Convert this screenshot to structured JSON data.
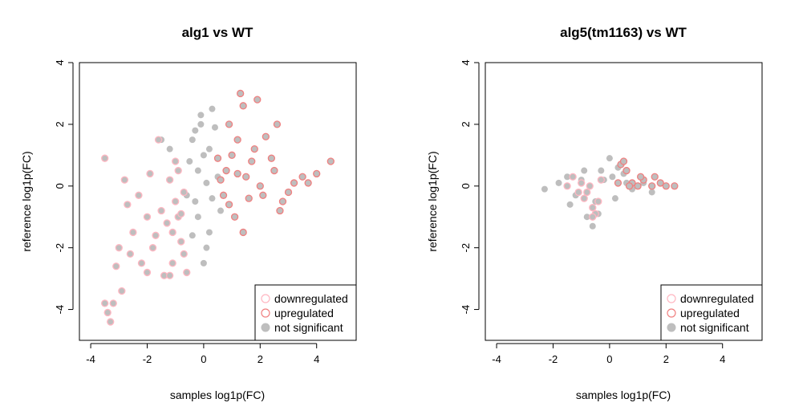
{
  "chart_data": [
    {
      "type": "scatter",
      "title": "alg1 vs WT",
      "xlabel": "samples log1p(FC)",
      "ylabel": "reference log1p(FC)",
      "xlim": [
        -4.4,
        5.4
      ],
      "ylim": [
        -5,
        4
      ],
      "xticks": [
        "-4",
        "-2",
        "0",
        "2",
        "4"
      ],
      "yticks": [
        "-4",
        "-2",
        "0",
        "2",
        "4"
      ],
      "legend_position": "bottom-right",
      "legend": [
        {
          "label": "downregulated",
          "style": "open",
          "color": "#FFB6C1"
        },
        {
          "label": "upregulated",
          "style": "open",
          "color": "#F08080"
        },
        {
          "label": "not significant",
          "style": "filled",
          "color": "#BEBEBE"
        }
      ],
      "series": [
        {
          "name": "not significant",
          "color": "#BEBEBE",
          "points": [
            [
              -0.2,
              0.5
            ],
            [
              0.0,
              1.0
            ],
            [
              -0.3,
              -0.5
            ],
            [
              0.2,
              -1.5
            ],
            [
              -0.1,
              2.0
            ],
            [
              0.3,
              2.5
            ],
            [
              -0.4,
              1.5
            ],
            [
              0.1,
              -2.0
            ],
            [
              -0.5,
              0.8
            ],
            [
              0.4,
              1.9
            ],
            [
              -0.2,
              -1.0
            ],
            [
              0.5,
              0.3
            ],
            [
              -0.6,
              -0.3
            ],
            [
              0.0,
              -2.5
            ],
            [
              0.2,
              1.2
            ],
            [
              -1.5,
              1.5
            ],
            [
              -1.2,
              1.2
            ],
            [
              -0.3,
              1.8
            ],
            [
              0.6,
              -0.8
            ],
            [
              0.1,
              0.1
            ],
            [
              -0.4,
              -1.6
            ],
            [
              0.3,
              -0.4
            ],
            [
              -0.1,
              2.3
            ]
          ]
        },
        {
          "name": "downregulated",
          "color": "#FFB6C1",
          "points": [
            [
              -1.0,
              -0.5
            ],
            [
              -0.9,
              -1.0
            ],
            [
              -1.2,
              0.2
            ],
            [
              -0.8,
              -1.8
            ],
            [
              -1.1,
              -2.5
            ],
            [
              -0.7,
              -0.2
            ],
            [
              -1.3,
              -1.2
            ],
            [
              -1.0,
              0.8
            ],
            [
              -0.6,
              -2.8
            ],
            [
              -1.5,
              -0.8
            ],
            [
              -2.0,
              -1.0
            ],
            [
              -1.8,
              -2.0
            ],
            [
              -2.5,
              -1.5
            ],
            [
              -2.2,
              -2.5
            ],
            [
              -2.8,
              0.2
            ],
            [
              -3.5,
              0.9
            ],
            [
              -3.0,
              -2.0
            ],
            [
              -2.9,
              -3.4
            ],
            [
              -3.2,
              -3.8
            ],
            [
              -3.4,
              -4.1
            ],
            [
              -3.3,
              -4.4
            ],
            [
              -3.5,
              -3.8
            ],
            [
              -2.6,
              -2.2
            ],
            [
              -1.6,
              1.5
            ],
            [
              -1.9,
              0.4
            ],
            [
              -2.3,
              -0.3
            ],
            [
              -1.4,
              -2.9
            ],
            [
              -0.9,
              0.5
            ],
            [
              -1.1,
              -1.5
            ],
            [
              -0.8,
              -0.9
            ],
            [
              -2.7,
              -0.6
            ],
            [
              -1.7,
              -1.6
            ],
            [
              -1.2,
              -2.9
            ],
            [
              -0.7,
              -2.2
            ],
            [
              -2.0,
              -2.8
            ],
            [
              -3.1,
              -2.6
            ]
          ]
        },
        {
          "name": "upregulated",
          "color": "#F08080",
          "points": [
            [
              0.8,
              0.5
            ],
            [
              1.0,
              1.0
            ],
            [
              0.6,
              0.2
            ],
            [
              1.2,
              1.5
            ],
            [
              0.9,
              2.0
            ],
            [
              1.5,
              0.3
            ],
            [
              1.8,
              1.2
            ],
            [
              2.0,
              0.0
            ],
            [
              2.5,
              0.5
            ],
            [
              3.0,
              -0.2
            ],
            [
              3.5,
              0.3
            ],
            [
              4.0,
              0.4
            ],
            [
              4.5,
              0.8
            ],
            [
              2.8,
              -0.5
            ],
            [
              1.4,
              2.6
            ],
            [
              1.3,
              3.0
            ],
            [
              1.9,
              2.8
            ],
            [
              2.6,
              2.0
            ],
            [
              0.7,
              -0.3
            ],
            [
              1.1,
              -1.0
            ],
            [
              1.4,
              -1.5
            ],
            [
              2.7,
              -0.8
            ],
            [
              3.2,
              0.1
            ],
            [
              2.2,
              1.6
            ],
            [
              1.6,
              -0.4
            ],
            [
              0.5,
              0.9
            ],
            [
              1.7,
              0.8
            ],
            [
              2.1,
              -0.3
            ],
            [
              0.9,
              -0.6
            ],
            [
              2.4,
              0.9
            ],
            [
              3.7,
              0.1
            ],
            [
              1.2,
              0.4
            ]
          ]
        }
      ]
    },
    {
      "type": "scatter",
      "title": "alg5(tm1163) vs WT",
      "xlabel": "samples log1p(FC)",
      "ylabel": "reference log1p(FC)",
      "xlim": [
        -4.4,
        5.4
      ],
      "ylim": [
        -5,
        4
      ],
      "xticks": [
        "-4",
        "-2",
        "0",
        "2",
        "4"
      ],
      "yticks": [
        "-4",
        "-2",
        "0",
        "2",
        "4"
      ],
      "legend_position": "bottom-right",
      "legend": [
        {
          "label": "downregulated",
          "style": "open",
          "color": "#FFB6C1"
        },
        {
          "label": "upregulated",
          "style": "open",
          "color": "#F08080"
        },
        {
          "label": "not significant",
          "style": "filled",
          "color": "#BEBEBE"
        }
      ],
      "series": [
        {
          "name": "not significant",
          "color": "#BEBEBE",
          "points": [
            [
              -2.3,
              -0.1
            ],
            [
              -1.8,
              0.1
            ],
            [
              -1.5,
              0.3
            ],
            [
              -1.2,
              -0.3
            ],
            [
              -0.8,
              -1.0
            ],
            [
              -0.6,
              -1.3
            ],
            [
              -0.3,
              0.5
            ],
            [
              0.0,
              0.9
            ],
            [
              0.3,
              0.6
            ],
            [
              0.5,
              0.4
            ],
            [
              0.8,
              -0.1
            ],
            [
              -1.0,
              0.2
            ],
            [
              -0.5,
              -0.5
            ],
            [
              0.2,
              -0.4
            ],
            [
              1.2,
              0.1
            ],
            [
              1.5,
              -0.2
            ],
            [
              -0.2,
              0.2
            ],
            [
              0.6,
              0.1
            ],
            [
              -1.4,
              -0.6
            ],
            [
              -0.9,
              0.5
            ],
            [
              0.1,
              0.3
            ],
            [
              -0.4,
              -0.9
            ]
          ]
        },
        {
          "name": "downregulated",
          "color": "#FFB6C1",
          "points": [
            [
              -1.3,
              0.3
            ],
            [
              -1.0,
              0.1
            ],
            [
              -0.8,
              -0.2
            ],
            [
              -0.6,
              -0.7
            ],
            [
              -0.5,
              -0.9
            ],
            [
              -0.3,
              0.2
            ],
            [
              -0.7,
              0.0
            ],
            [
              -1.5,
              0.0
            ],
            [
              -0.4,
              -0.5
            ],
            [
              -0.9,
              -0.4
            ],
            [
              -0.6,
              -1.0
            ],
            [
              -1.1,
              -0.2
            ]
          ]
        },
        {
          "name": "upregulated",
          "color": "#F08080",
          "points": [
            [
              0.4,
              0.7
            ],
            [
              0.5,
              0.8
            ],
            [
              0.6,
              0.5
            ],
            [
              0.8,
              0.1
            ],
            [
              1.0,
              0.0
            ],
            [
              1.2,
              0.2
            ],
            [
              1.5,
              0.0
            ],
            [
              1.8,
              0.1
            ],
            [
              2.0,
              0.0
            ],
            [
              2.3,
              0.0
            ],
            [
              1.1,
              0.3
            ],
            [
              0.3,
              0.1
            ],
            [
              0.7,
              0.0
            ],
            [
              1.6,
              0.3
            ]
          ]
        }
      ]
    }
  ]
}
